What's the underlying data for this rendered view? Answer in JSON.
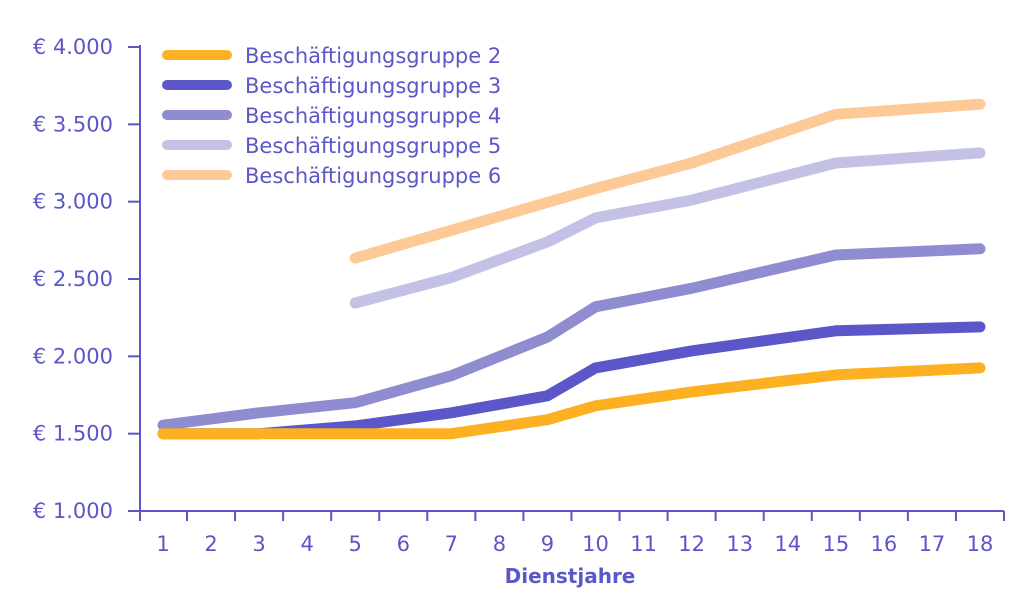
{
  "chart_data": {
    "type": "line",
    "xlabel": "Dienstjahre",
    "ylabel": "",
    "x": [
      1,
      2,
      3,
      4,
      5,
      6,
      7,
      8,
      9,
      10,
      11,
      12,
      13,
      14,
      15,
      16,
      17,
      18
    ],
    "ylim": [
      1000,
      4000
    ],
    "yticks": [
      1000,
      1500,
      2000,
      2500,
      3000,
      3500,
      4000
    ],
    "ytick_labels": [
      "€ 1.000",
      "€ 1.500",
      "€ 2.000",
      "€ 2.500",
      "€ 3.000",
      "€ 3.500",
      "€ 4.000"
    ],
    "grid": false,
    "legend_position": "top-left",
    "series": [
      {
        "name": "Beschäftigungsgruppe 2",
        "color": "#fdb022",
        "points": [
          [
            1,
            1500
          ],
          [
            3,
            1500
          ],
          [
            5,
            1500
          ],
          [
            7,
            1500
          ],
          [
            9,
            1590
          ],
          [
            10,
            1680
          ],
          [
            12,
            1770
          ],
          [
            15,
            1880
          ],
          [
            18,
            1925
          ]
        ]
      },
      {
        "name": "Beschäftigungsgruppe 3",
        "color": "#5b57c8",
        "points": [
          [
            1,
            1500
          ],
          [
            3,
            1500
          ],
          [
            5,
            1550
          ],
          [
            7,
            1635
          ],
          [
            9,
            1745
          ],
          [
            10,
            1925
          ],
          [
            12,
            2035
          ],
          [
            15,
            2165
          ],
          [
            18,
            2190
          ]
        ]
      },
      {
        "name": "Beschäftigungsgruppe 4",
        "color": "#8f8cd0",
        "points": [
          [
            1,
            1555
          ],
          [
            3,
            1635
          ],
          [
            5,
            1700
          ],
          [
            7,
            1875
          ],
          [
            9,
            2125
          ],
          [
            10,
            2320
          ],
          [
            12,
            2440
          ],
          [
            15,
            2655
          ],
          [
            18,
            2695
          ]
        ]
      },
      {
        "name": "Beschäftigungsgruppe 5",
        "color": "#c3c1e6",
        "points": [
          [
            5,
            2345
          ],
          [
            7,
            2510
          ],
          [
            9,
            2740
          ],
          [
            10,
            2895
          ],
          [
            12,
            3010
          ],
          [
            15,
            3250
          ],
          [
            18,
            3315
          ]
        ]
      },
      {
        "name": "Beschäftigungsgruppe 6",
        "color": "#fdc997",
        "points": [
          [
            5,
            2635
          ],
          [
            7,
            2815
          ],
          [
            9,
            2995
          ],
          [
            10,
            3085
          ],
          [
            12,
            3250
          ],
          [
            15,
            3565
          ],
          [
            18,
            3630
          ]
        ]
      }
    ]
  }
}
